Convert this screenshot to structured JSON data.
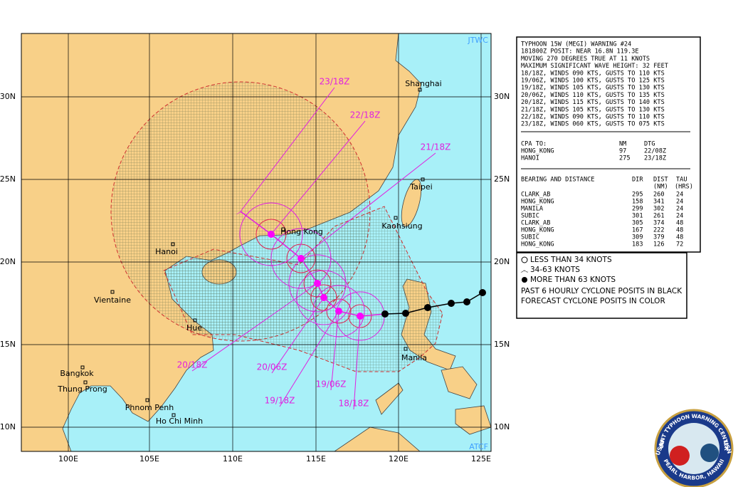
{
  "map": {
    "corner_top": "JTWC",
    "corner_bottom": "ATCF",
    "lat_labels": [
      "30N",
      "25N",
      "20N",
      "15N",
      "10N"
    ],
    "lon_labels": [
      "100E",
      "105E",
      "110E",
      "115E",
      "120E",
      "125E"
    ],
    "places": [
      "Shanghai",
      "Taipei",
      "Kaohsiung",
      "Hong Kong",
      "Hanoi",
      "Vientaine",
      "Hue",
      "Bangkok",
      "Thung Prong",
      "Phnom Penh",
      "Ho Chi Minh",
      "Manila"
    ],
    "forecast_times": [
      "23/18Z",
      "22/18Z",
      "21/18Z",
      "20/18Z",
      "20/06Z",
      "19/18Z",
      "19/06Z",
      "18/18Z"
    ]
  },
  "warning": {
    "lines": [
      "TYPHOON 15W (MEGI) WARNING #24",
      "181800Z POSIT: NEAR 16.8N 119.3E",
      "MOVING 270 DEGREES TRUE AT 11 KNOTS",
      "MAXIMUM SIGNIFICANT WAVE HEIGHT: 32 FEET",
      "18/18Z, WINDS 090 KTS, GUSTS TO 110 KTS",
      "19/06Z, WINDS 100 KTS, GUSTS TO 125 KTS",
      "19/18Z, WINDS 105 KTS, GUSTS TO 130 KTS",
      "20/06Z, WINDS 110 KTS, GUSTS TO 135 KTS",
      "20/18Z, WINDS 115 KTS, GUSTS TO 140 KTS",
      "21/18Z, WINDS 105 KTS, GUSTS TO 130 KTS",
      "22/18Z, WINDS 090 KTS, GUSTS TO 110 KTS",
      "23/18Z, WINDS 060 KTS, GUSTS TO 075 KTS"
    ]
  },
  "cpa": {
    "header": [
      "CPA TO:",
      "NM",
      "DTG"
    ],
    "rows": [
      [
        "HONG_KONG",
        "97",
        "22/08Z"
      ],
      [
        "HANOI",
        "275",
        "23/18Z"
      ]
    ]
  },
  "bearing": {
    "header": [
      "BEARING AND DISTANCE",
      "DIR",
      "DIST",
      "TAU"
    ],
    "subheader": [
      "(NM)",
      "(HRS)"
    ],
    "rows": [
      [
        "CLARK_AB",
        "295",
        "260",
        "24"
      ],
      [
        "HONG_KONG",
        "158",
        "341",
        "24"
      ],
      [
        "MANILA",
        "299",
        "302",
        "24"
      ],
      [
        "SUBIC",
        "301",
        "261",
        "24"
      ],
      [
        "CLARK_AB",
        "305",
        "374",
        "48"
      ],
      [
        "HONG_KONG",
        "167",
        "222",
        "48"
      ],
      [
        "SUBIC",
        "309",
        "379",
        "48"
      ],
      [
        "HONG_KONG",
        "183",
        "126",
        "72"
      ]
    ]
  },
  "legend": [
    "LESS THAN 34 KNOTS",
    "34-63 KNOTS",
    "MORE THAN 63 KNOTS",
    "PAST 6 HOURLY CYCLONE POSITS IN BLACK",
    "FORECAST CYCLONE POSITS IN COLOR"
  ],
  "seal": {
    "top": "JOINT TYPHOON WARNING CENTER",
    "bottom": "PEARL HARBOR, HAWAII",
    "left": "USAF",
    "right": "USN"
  }
}
